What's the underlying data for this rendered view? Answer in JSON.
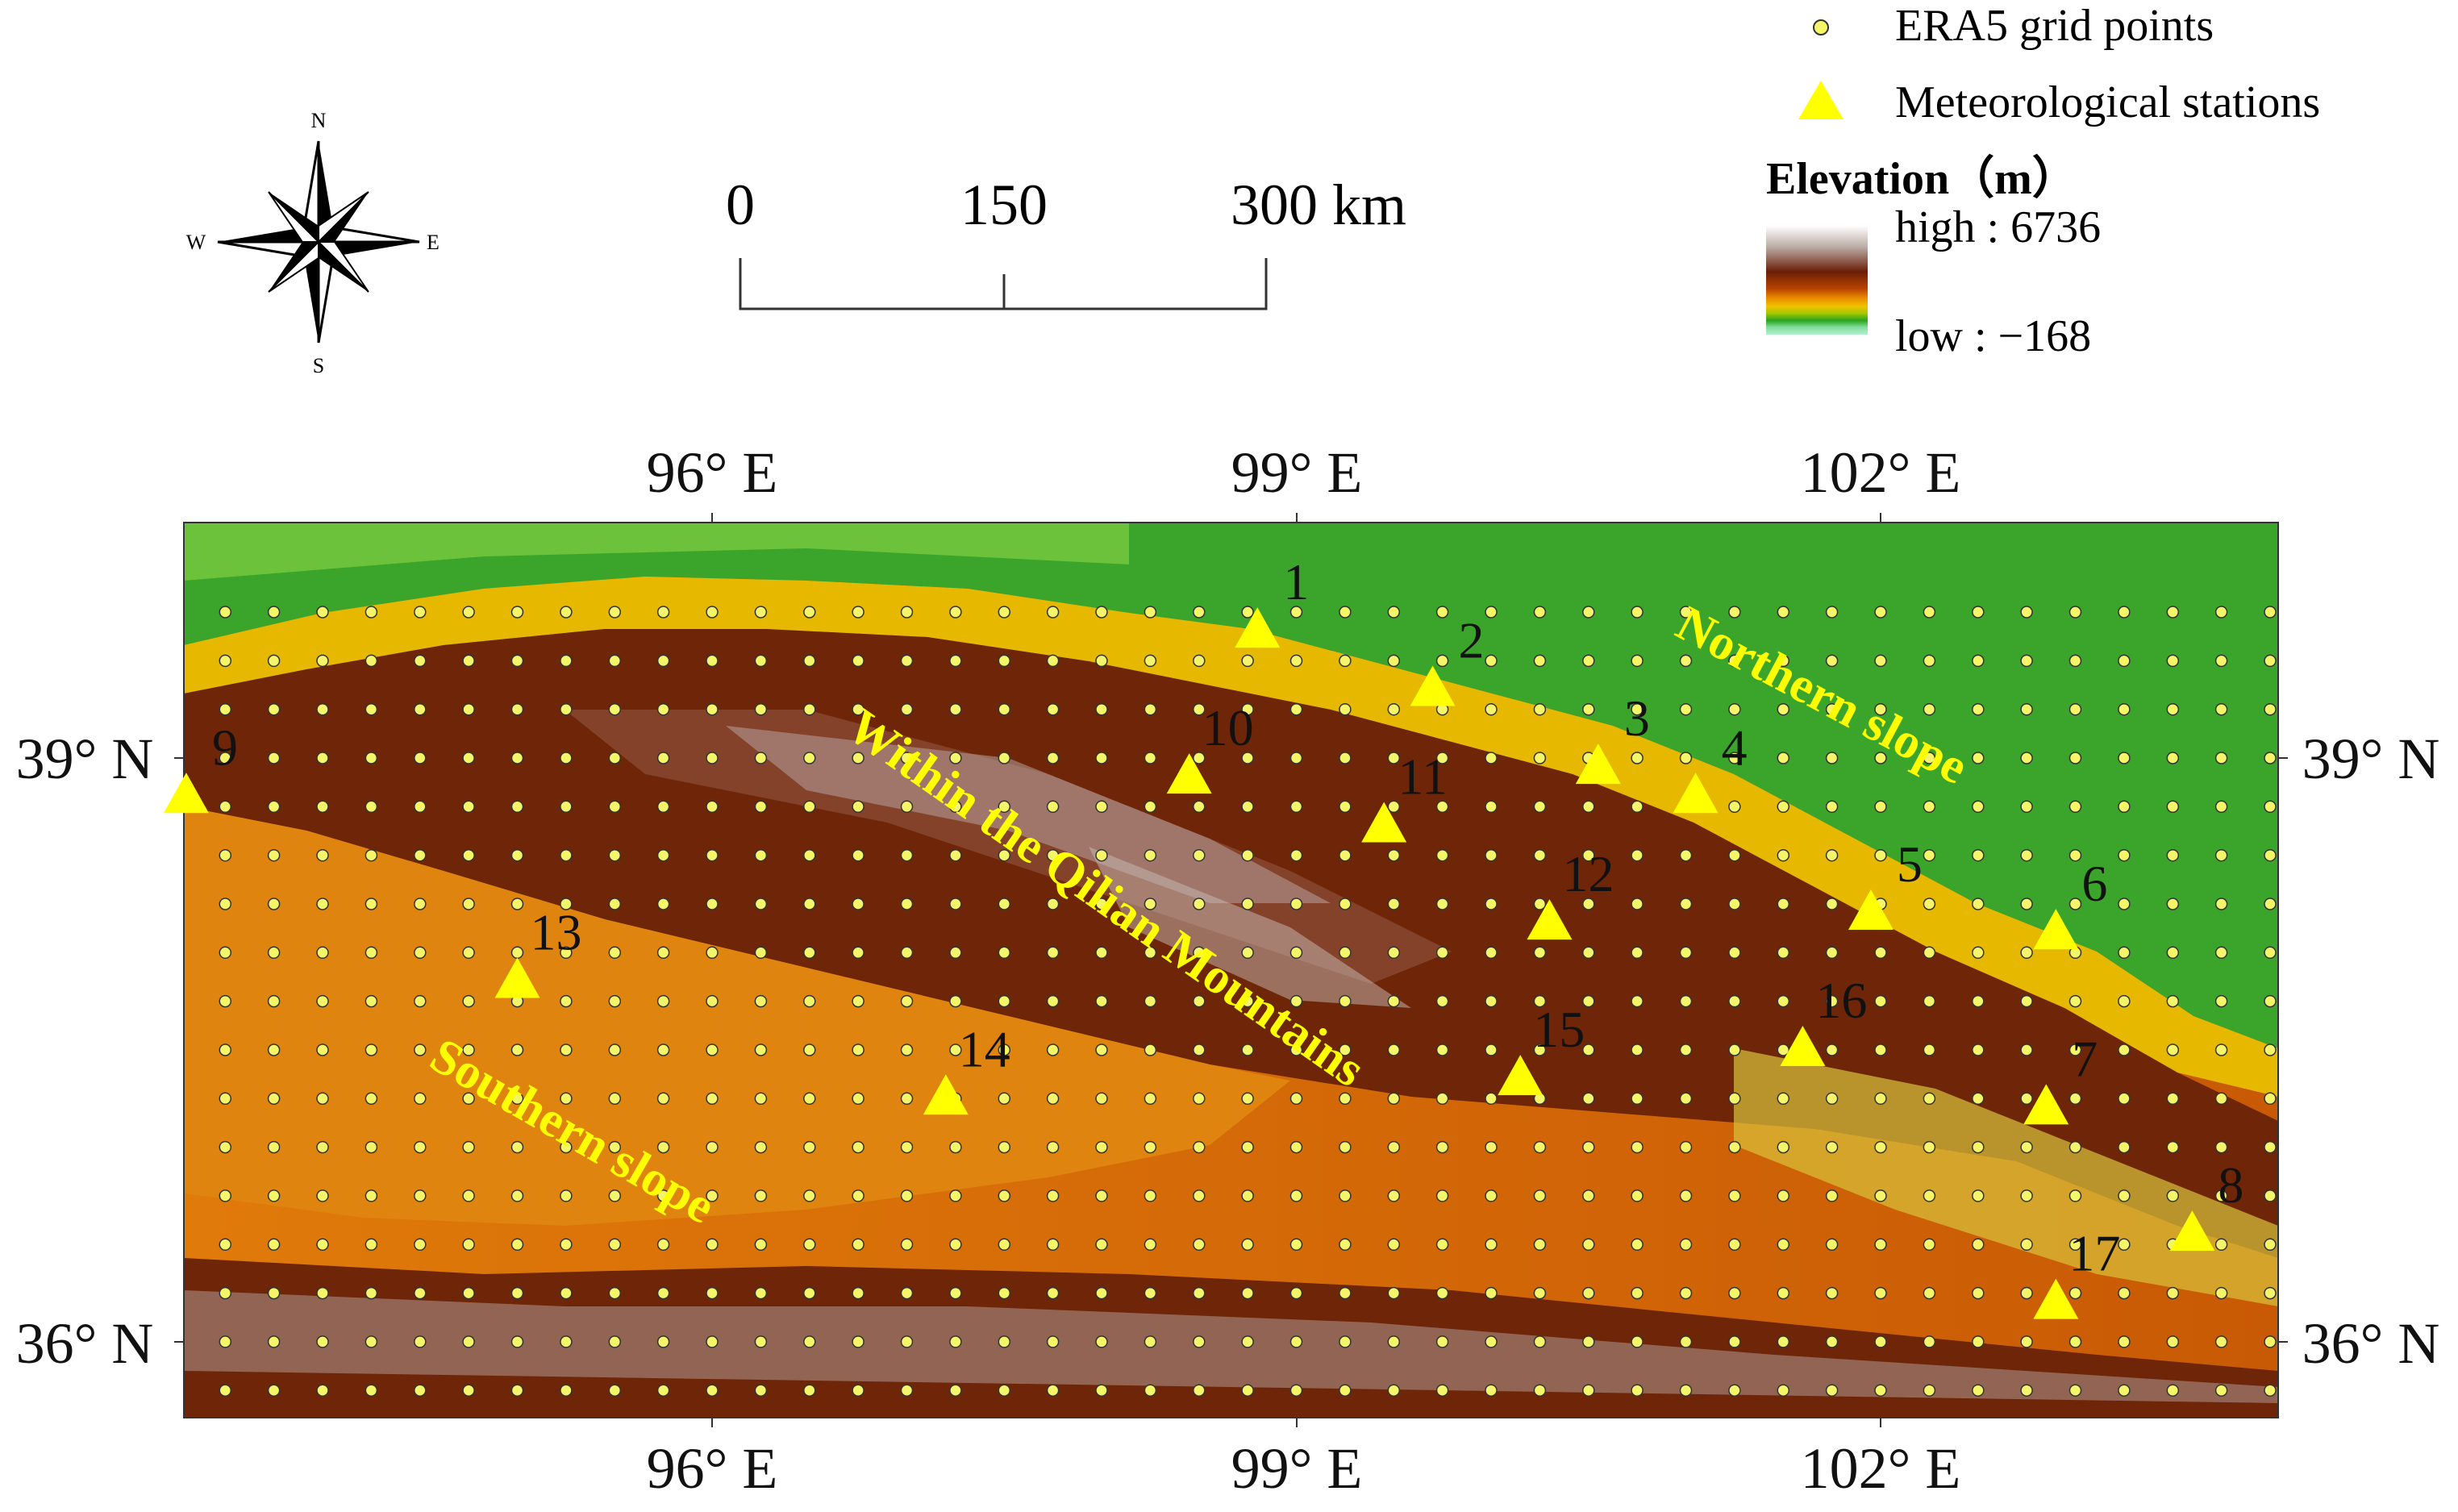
{
  "compass": {
    "north": "N",
    "south": "S",
    "east": "E",
    "west": "W"
  },
  "scale_bar": {
    "tick_0": "0",
    "tick_mid": "150",
    "tick_end": "300 km"
  },
  "legend": {
    "grid_points_label": "ERA5 grid points",
    "stations_label": "Meteorological stations",
    "elevation_title": "Elevation（m）",
    "elevation_high": "high : 6736",
    "elevation_low": "low : −168",
    "grid_point_color": "#f5f56a",
    "station_color": "#ffff00"
  },
  "axes": {
    "lon_labels": [
      "96° E",
      "99° E",
      "102° E"
    ],
    "lat_labels": [
      "39° N",
      "36° N"
    ]
  },
  "regions": {
    "northern_slope": "Northern slope",
    "within": "Within the Qilian Mountains",
    "southern_slope": "Southern slope",
    "region_label_color": "#ffff00"
  },
  "stations": [
    {
      "id": "1",
      "lon": 98.8,
      "lat": 39.65
    },
    {
      "id": "2",
      "lon": 99.7,
      "lat": 39.35
    },
    {
      "id": "3",
      "lon": 100.55,
      "lat": 38.95
    },
    {
      "id": "4",
      "lon": 101.05,
      "lat": 38.8
    },
    {
      "id": "5",
      "lon": 101.95,
      "lat": 38.2
    },
    {
      "id": "6",
      "lon": 102.9,
      "lat": 38.1
    },
    {
      "id": "7",
      "lon": 102.85,
      "lat": 37.2
    },
    {
      "id": "8",
      "lon": 103.6,
      "lat": 36.55
    },
    {
      "id": "9",
      "lon": 93.3,
      "lat": 38.8
    },
    {
      "id": "10",
      "lon": 98.45,
      "lat": 38.9
    },
    {
      "id": "11",
      "lon": 99.45,
      "lat": 38.65
    },
    {
      "id": "12",
      "lon": 100.3,
      "lat": 38.15
    },
    {
      "id": "13",
      "lon": 95.0,
      "lat": 37.85
    },
    {
      "id": "14",
      "lon": 97.2,
      "lat": 37.25
    },
    {
      "id": "15",
      "lon": 100.15,
      "lat": 37.35
    },
    {
      "id": "16",
      "lon": 101.6,
      "lat": 37.5
    },
    {
      "id": "17",
      "lon": 102.9,
      "lat": 36.2
    }
  ]
}
